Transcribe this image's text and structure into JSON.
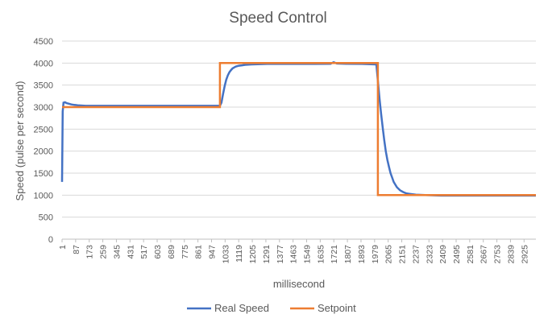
{
  "chart_data": {
    "type": "line",
    "title": "Speed Control",
    "xlabel": "millisecond",
    "ylabel": "Speed (pulse per second)",
    "ylim": [
      0,
      4500
    ],
    "yticks": [
      0,
      500,
      1000,
      1500,
      2000,
      2500,
      3000,
      3500,
      4000,
      4500
    ],
    "xlim": [
      1,
      3000
    ],
    "xticks": [
      1,
      87,
      173,
      259,
      345,
      431,
      517,
      603,
      689,
      775,
      861,
      947,
      1033,
      1119,
      1205,
      1291,
      1377,
      1463,
      1549,
      1635,
      1721,
      1807,
      1893,
      1979,
      2065,
      2151,
      2237,
      2323,
      2409,
      2495,
      2581,
      2667,
      2753,
      2839,
      2925
    ],
    "grid": "horizontal",
    "legend": "bottom",
    "series": [
      {
        "name": "Real Speed",
        "color": "#4472C4",
        "x": [
          1,
          5,
          10,
          20,
          30,
          40,
          60,
          80,
          100,
          150,
          200,
          300,
          400,
          500,
          600,
          700,
          800,
          900,
          1000,
          1010,
          1020,
          1030,
          1040,
          1050,
          1060,
          1070,
          1080,
          1090,
          1100,
          1120,
          1140,
          1160,
          1180,
          1200,
          1240,
          1300,
          1400,
          1500,
          1600,
          1700,
          1720,
          1740,
          1800,
          1900,
          1990,
          2000,
          2010,
          2020,
          2030,
          2040,
          2050,
          2060,
          2070,
          2080,
          2090,
          2100,
          2120,
          2140,
          2160,
          2180,
          2200,
          2240,
          2300,
          2400,
          2500,
          2600,
          2700,
          2800,
          2900,
          3000
        ],
        "values": [
          1300,
          2900,
          3100,
          3110,
          3090,
          3080,
          3060,
          3050,
          3040,
          3030,
          3030,
          3030,
          3030,
          3030,
          3030,
          3030,
          3030,
          3030,
          3030,
          3100,
          3300,
          3480,
          3620,
          3720,
          3790,
          3840,
          3880,
          3900,
          3920,
          3940,
          3950,
          3960,
          3965,
          3970,
          3975,
          3980,
          3980,
          3980,
          3980,
          3985,
          4020,
          3990,
          3985,
          3980,
          3970,
          3600,
          3200,
          2850,
          2550,
          2250,
          2000,
          1800,
          1640,
          1500,
          1400,
          1300,
          1180,
          1110,
          1070,
          1040,
          1030,
          1010,
          1000,
          990,
          990,
          990,
          990,
          990,
          990,
          990
        ]
      },
      {
        "name": "Setpoint",
        "color": "#ED7D31",
        "x": [
          1,
          1000,
          1000,
          2000,
          2000,
          3000
        ],
        "values": [
          3000,
          3000,
          4000,
          4000,
          1000,
          1000
        ]
      }
    ]
  }
}
